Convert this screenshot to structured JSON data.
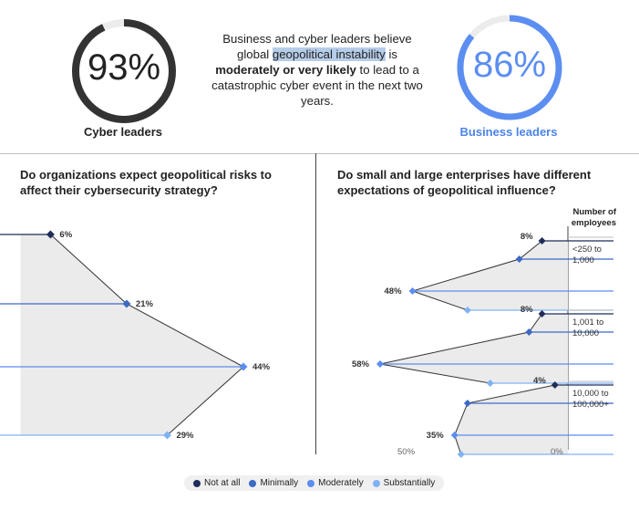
{
  "colors": {
    "not_at_all": "#1f2d5a",
    "minimally": "#3c69c4",
    "moderately": "#5b8ef0",
    "substantially": "#7fb2f4",
    "donut_cyber": "#333333",
    "donut_business": "#5b8ef0",
    "donut_track": "#ececec",
    "area_fill": "#ebebeb"
  },
  "top": {
    "cyber": {
      "value_text": "93%",
      "label": "Cyber leaders",
      "fraction": 0.93
    },
    "business": {
      "value_text": "86%",
      "label": "Business leaders",
      "fraction": 0.86
    },
    "headline": {
      "p1": "Business and cyber leaders believe global ",
      "highlight": "geopolitical instability",
      "p2": " is ",
      "bold": "moderately or very likely",
      "p3": " to lead to a catastrophic cyber event in the next two years."
    }
  },
  "left_panel": {
    "question": "Do organizations expect geopolitical risks to affect their cybersecurity strategy?"
  },
  "right_panel": {
    "question": "Do small and large enterprises have different expectations of geopolitical influence?",
    "employees_header": "Number of employees",
    "tick_50": "50%",
    "tick_0": "0%"
  },
  "chart_data": [
    {
      "type": "line",
      "title": "Do organizations expect geopolitical risks to affect their cybersecurity strategy?",
      "categories": [
        "Not at all",
        "Minimally",
        "Moderately",
        "Substantially"
      ],
      "values": [
        6,
        21,
        44,
        29
      ],
      "value_labels": [
        "6%",
        "21%",
        "44%",
        "29%"
      ],
      "unit": "%"
    },
    {
      "type": "line",
      "title": "Do small and large enterprises have different expectations of geopolitical influence?",
      "categories": [
        "Not at all",
        "Minimally",
        "Moderately",
        "Substantially"
      ],
      "xlim": [
        0,
        60
      ],
      "groups": [
        {
          "name": "<250 to 1,000",
          "line1": "<250 to",
          "line2": "1,000",
          "values": [
            8,
            15,
            48,
            31
          ],
          "labels": {
            "first": "8%",
            "max": "48%"
          }
        },
        {
          "name": "1,001 to 10,000",
          "line1": "1,001 to",
          "line2": "10,000",
          "values": [
            8,
            12,
            58,
            24
          ],
          "labels": {
            "first": "8%",
            "max": "58%"
          }
        },
        {
          "name": "10,000 to 100,000+",
          "line1": "10,000 to",
          "line2": "100,000+",
          "values": [
            4,
            31,
            35,
            33
          ],
          "labels": {
            "first": "4%",
            "max": "35%"
          }
        }
      ]
    }
  ],
  "legend": {
    "items": [
      {
        "label": "Not at all",
        "color": "#1f2d5a"
      },
      {
        "label": "Minimally",
        "color": "#3c69c4"
      },
      {
        "label": "Moderately",
        "color": "#5b8ef0"
      },
      {
        "label": "Substantially",
        "color": "#7fb2f4"
      }
    ]
  }
}
